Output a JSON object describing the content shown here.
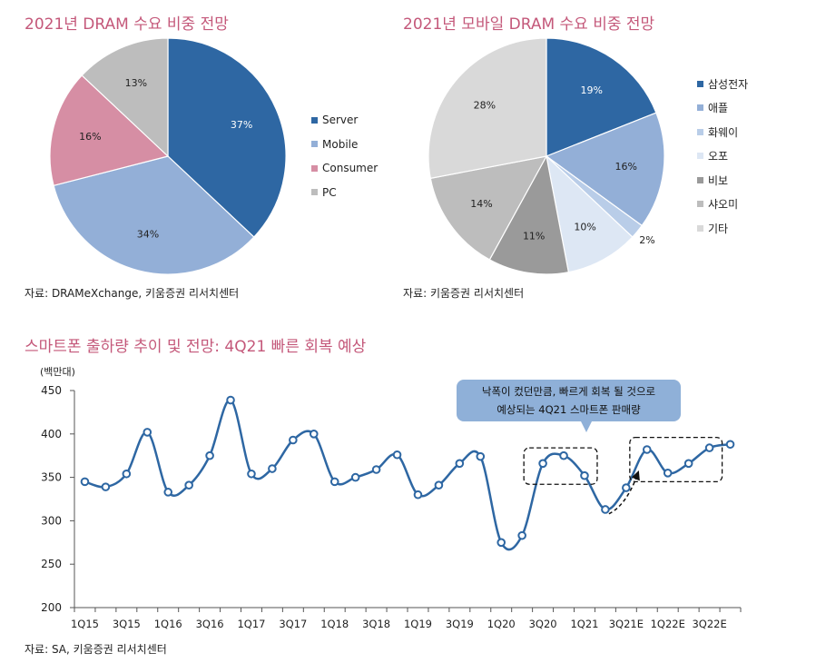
{
  "chart_data": [
    {
      "type": "pie",
      "title": "2021년 DRAM 수요 비중 전망",
      "categories": [
        "Server",
        "Mobile",
        "Consumer",
        "PC"
      ],
      "values": [
        37,
        34,
        16,
        13
      ],
      "value_labels": [
        "37%",
        "34%",
        "16%",
        "13%"
      ],
      "colors": [
        "#2e67a3",
        "#93afd7",
        "#d68ea4",
        "#bdbdbd"
      ],
      "legend": "right",
      "source": "자료: DRAMeXchange, 키움증권 리서치센터"
    },
    {
      "type": "pie",
      "title": "2021년 모바일 DRAM 수요 비중 전망",
      "categories": [
        "삼성전자",
        "애플",
        "화웨이",
        "오포",
        "비보",
        "샤오미",
        "기타"
      ],
      "values": [
        19,
        16,
        2,
        10,
        11,
        14,
        28
      ],
      "value_labels": [
        "19%",
        "16%",
        "2%",
        "10%",
        "11%",
        "14%",
        "28%"
      ],
      "colors": [
        "#2e67a3",
        "#93afd7",
        "#b9cde8",
        "#dde7f4",
        "#9a9a9a",
        "#bdbdbd",
        "#d9d9d9"
      ],
      "legend": "right",
      "source": "자료: 키움증권 리서치센터"
    },
    {
      "type": "line",
      "title": "스마트폰 출하량 추이 및 전망: 4Q21 빠른 회복 예상",
      "ylabel": "(백만대)",
      "x": [
        "1Q15",
        "2Q15",
        "3Q15",
        "4Q15",
        "1Q16",
        "2Q16",
        "3Q16",
        "4Q16",
        "1Q17",
        "2Q17",
        "3Q17",
        "4Q17",
        "1Q18",
        "2Q18",
        "3Q18",
        "4Q18",
        "1Q19",
        "2Q19",
        "3Q19",
        "4Q19",
        "1Q20",
        "2Q20",
        "3Q20",
        "4Q20",
        "1Q21",
        "2Q21",
        "3Q21E",
        "4Q21E",
        "1Q22E",
        "2Q22E",
        "3Q22E",
        "4Q22E"
      ],
      "xtick_labels": [
        "1Q15",
        "3Q15",
        "1Q16",
        "3Q16",
        "1Q17",
        "3Q17",
        "1Q18",
        "3Q18",
        "1Q19",
        "3Q19",
        "1Q20",
        "3Q20",
        "1Q21",
        "3Q21E",
        "1Q22E",
        "3Q22E"
      ],
      "series": [
        {
          "name": "스마트폰 출하량",
          "color": "#2e67a3",
          "values": [
            345,
            339,
            354,
            402,
            333,
            341,
            375,
            439,
            354,
            360,
            393,
            400,
            345,
            350,
            359,
            376,
            330,
            341,
            366,
            374,
            275,
            283,
            366,
            375,
            352,
            313,
            338,
            382,
            355,
            366,
            384,
            388
          ]
        }
      ],
      "ylim": [
        200,
        450
      ],
      "yticks": [
        200,
        250,
        300,
        350,
        400,
        450
      ],
      "annotation": {
        "text_line1": "낙폭이 컸던만큼, 빠르게 회복 될 것으로",
        "text_line2": "예상되는 4Q21 스마트폰 판매량"
      },
      "source": "자료: SA, 키움증권 리서치센터"
    }
  ]
}
